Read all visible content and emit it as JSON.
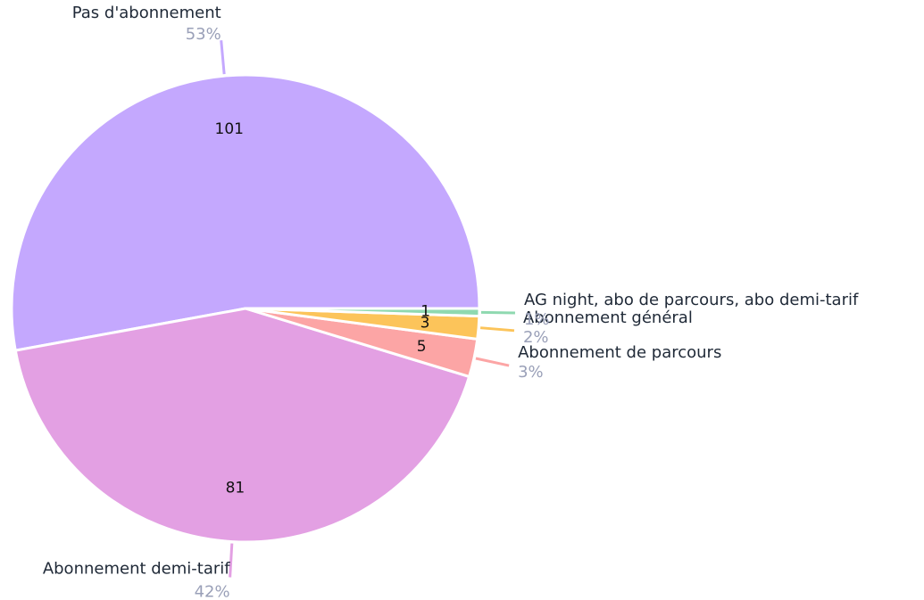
{
  "chart_data": {
    "type": "pie",
    "categories": [
      "Pas d'abonnement",
      "Abonnement demi-tarif",
      "Abonnement de parcours",
      "Abonnement général",
      "AG night, abo de parcours, abo demi-tarif"
    ],
    "values": [
      101,
      81,
      5,
      3,
      1
    ],
    "percent_labels": [
      "53%",
      "42%",
      "3%",
      "2%",
      "1%"
    ],
    "colors": [
      "#c4a8fe",
      "#e3a0e3",
      "#fca5a5",
      "#fcc45a",
      "#8fd9b0"
    ]
  }
}
